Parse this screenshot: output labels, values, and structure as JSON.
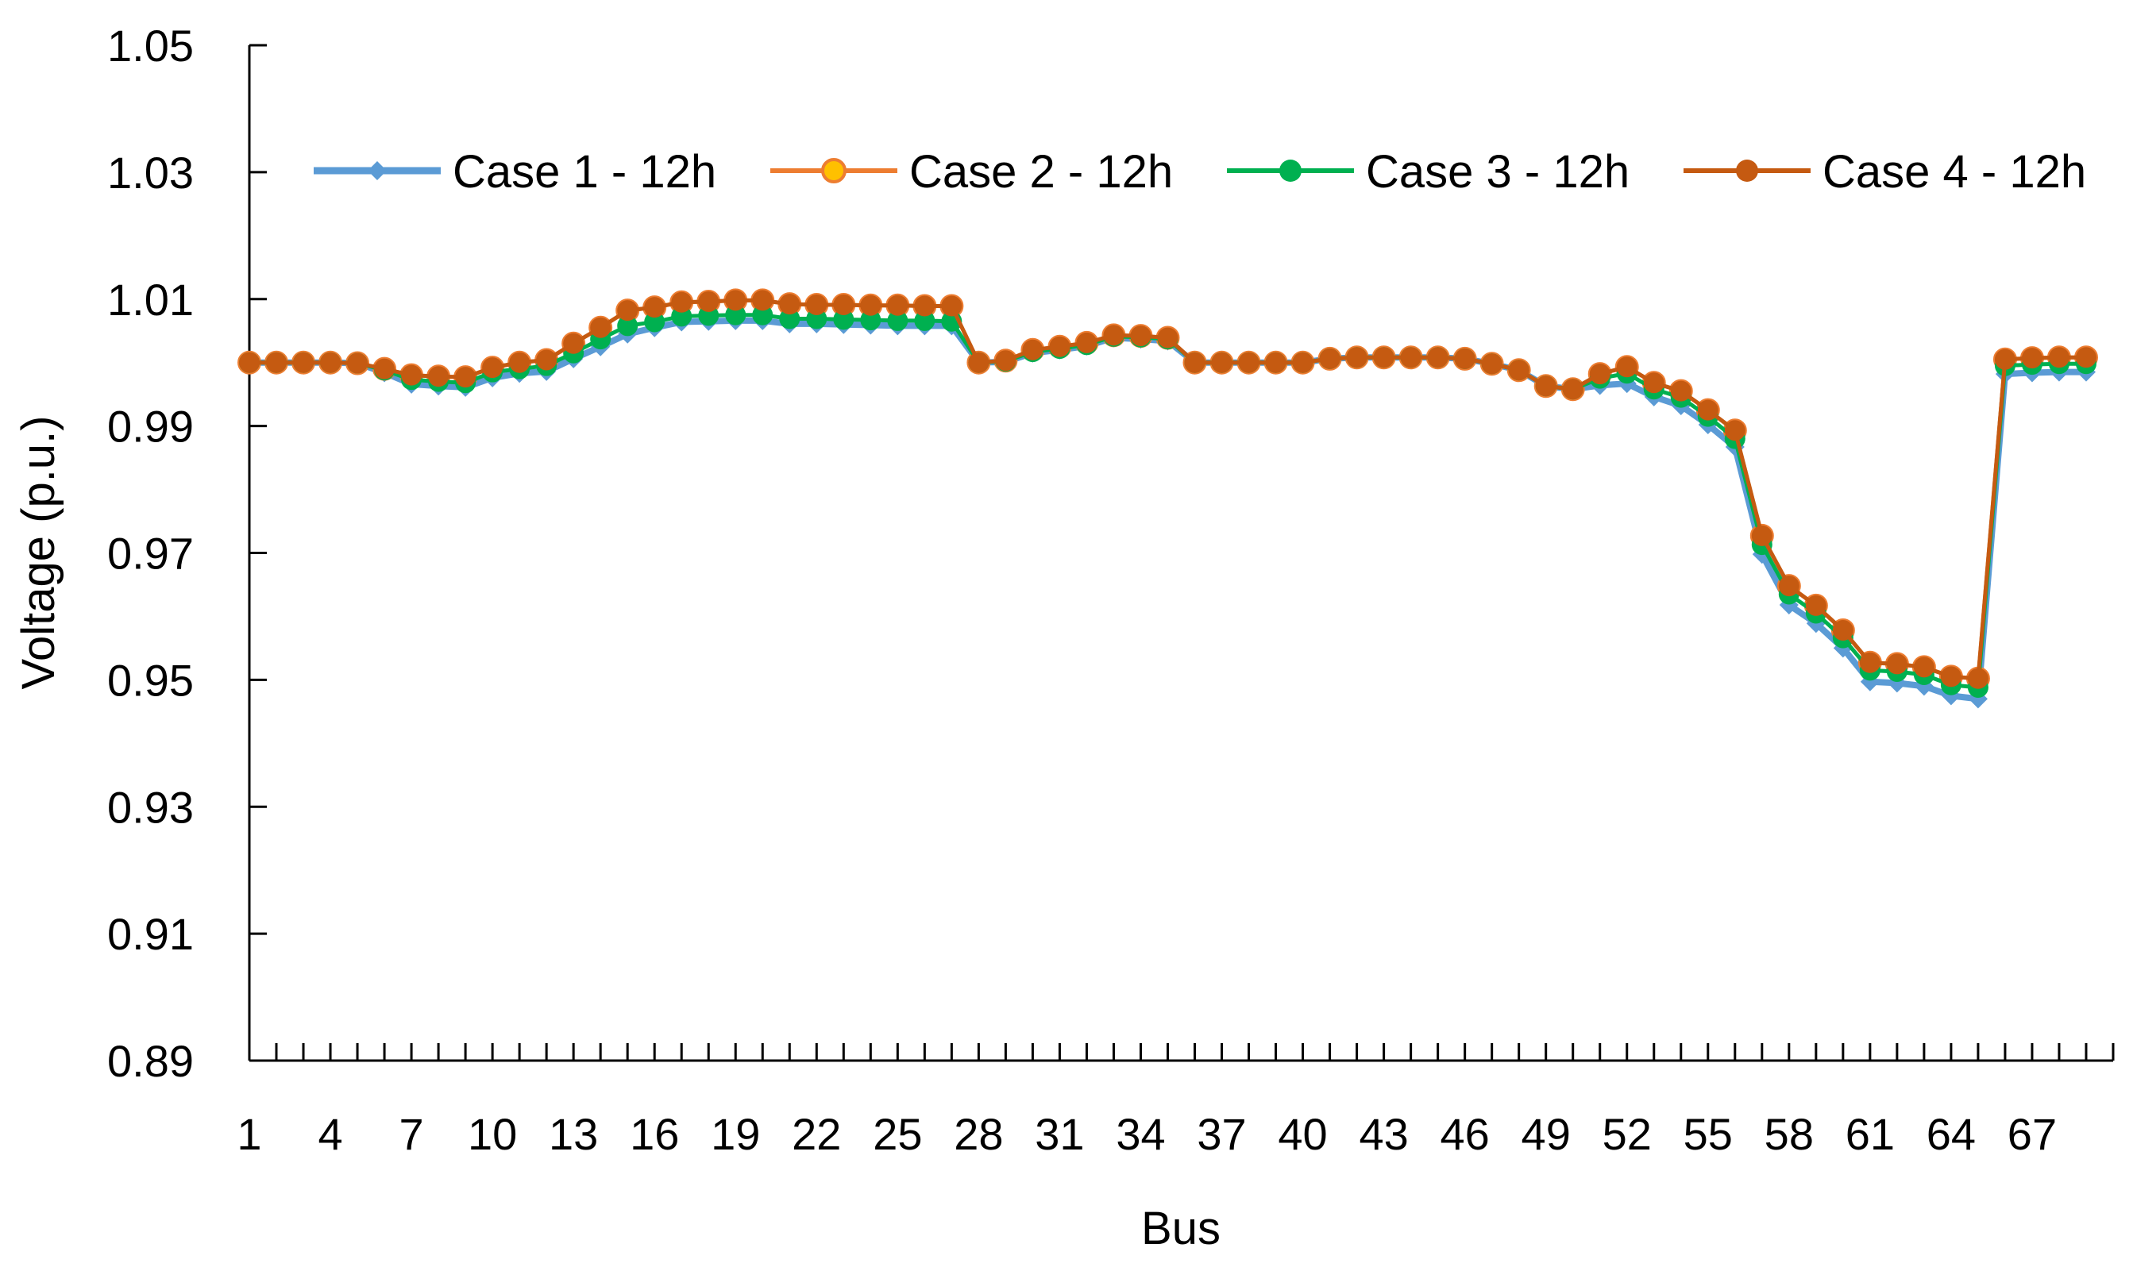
{
  "chart_data": {
    "type": "line",
    "title": "",
    "xlabel": "Bus",
    "ylabel": "Voltage (p.u.)",
    "ylim": [
      0.89,
      1.05
    ],
    "yticks": [
      "1.05",
      "1.03",
      "1.01",
      "0.99",
      "0.97",
      "0.95",
      "0.93",
      "0.91",
      "0.89"
    ],
    "x": [
      1,
      2,
      3,
      4,
      5,
      6,
      7,
      8,
      9,
      10,
      11,
      12,
      13,
      14,
      15,
      16,
      17,
      18,
      19,
      20,
      21,
      22,
      23,
      24,
      25,
      26,
      27,
      28,
      29,
      30,
      31,
      32,
      33,
      34,
      35,
      36,
      37,
      38,
      39,
      40,
      41,
      42,
      43,
      44,
      45,
      46,
      47,
      48,
      49,
      50,
      51,
      52,
      53,
      54,
      55,
      56,
      57,
      58,
      59,
      60,
      61,
      62,
      63,
      64,
      65,
      66,
      67,
      68,
      69
    ],
    "xtick_labels": [
      "1",
      "4",
      "7",
      "10",
      "13",
      "16",
      "19",
      "22",
      "25",
      "28",
      "31",
      "34",
      "37",
      "40",
      "43",
      "46",
      "49",
      "52",
      "55",
      "58",
      "61",
      "64",
      "67"
    ],
    "legend_position": "top",
    "grid": false,
    "series": [
      {
        "name": "Case 1 - 12h",
        "color": "#5B9BD5",
        "marker": "diamond",
        "values": [
          1.0,
          1.0,
          1.0,
          1.0,
          0.9999,
          0.9984,
          0.9966,
          0.9963,
          0.9961,
          0.9976,
          0.9983,
          0.9986,
          1.0006,
          1.0025,
          1.0045,
          1.0055,
          1.0064,
          1.0065,
          1.0066,
          1.0066,
          1.0061,
          1.0061,
          1.006,
          1.0059,
          1.0058,
          1.0058,
          1.0058,
          1.0,
          1.0001,
          1.0015,
          1.002,
          1.0026,
          1.0039,
          1.0037,
          1.0034,
          1.0,
          1.0,
          1.0,
          1.0,
          1.0,
          1.0006,
          1.0008,
          1.0008,
          1.0008,
          1.0008,
          1.0006,
          0.9998,
          0.9988,
          0.9963,
          0.9958,
          0.9964,
          0.9967,
          0.9946,
          0.9932,
          0.9902,
          0.9867,
          0.9698,
          0.9618,
          0.9589,
          0.955,
          0.9497,
          0.9495,
          0.949,
          0.9475,
          0.947,
          0.9982,
          0.9984,
          0.9985,
          0.9985
        ]
      },
      {
        "name": "Case 2 - 12h",
        "color": "#ED7D31",
        "marker": "circle",
        "values": [
          1.0,
          1.0,
          1.0,
          1.0,
          0.9999,
          0.999,
          0.998,
          0.9978,
          0.9977,
          0.9992,
          1.0,
          1.0004,
          1.003,
          1.0055,
          1.0082,
          1.0087,
          1.0095,
          1.0096,
          1.0098,
          1.0098,
          1.0092,
          1.0091,
          1.0091,
          1.009,
          1.009,
          1.0089,
          1.0089,
          1.0,
          1.0003,
          1.002,
          1.0025,
          1.0031,
          1.0043,
          1.0042,
          1.0039,
          1.0,
          1.0,
          1.0,
          1.0,
          1.0,
          1.0006,
          1.0008,
          1.0008,
          1.0008,
          1.0008,
          1.0006,
          0.9998,
          0.9988,
          0.9963,
          0.9958,
          0.9982,
          0.9993,
          0.9968,
          0.9955,
          0.9925,
          0.9893,
          0.9727,
          0.9648,
          0.9617,
          0.9578,
          0.9527,
          0.9525,
          0.952,
          0.9505,
          0.9502,
          1.0005,
          1.0007,
          1.0008,
          1.0008
        ]
      },
      {
        "name": "Case 3 - 12h",
        "color": "#00B050",
        "marker": "circle",
        "values": [
          1.0,
          1.0,
          1.0,
          1.0,
          0.9999,
          0.9988,
          0.9973,
          0.997,
          0.9968,
          0.9985,
          0.999,
          0.9995,
          1.0015,
          1.0037,
          1.0058,
          1.0064,
          1.0073,
          1.0074,
          1.0075,
          1.0075,
          1.0069,
          1.0069,
          1.0068,
          1.0067,
          1.0066,
          1.0066,
          1.0065,
          1.0,
          1.0002,
          1.0017,
          1.0022,
          1.0028,
          1.0041,
          1.004,
          1.0037,
          1.0,
          1.0,
          1.0,
          1.0,
          1.0,
          1.0006,
          1.0008,
          1.0008,
          1.0008,
          1.0008,
          1.0006,
          0.9998,
          0.9988,
          0.9963,
          0.9958,
          0.9975,
          0.9983,
          0.9958,
          0.9945,
          0.9915,
          0.988,
          0.9713,
          0.9635,
          0.9605,
          0.9566,
          0.9515,
          0.9513,
          0.9508,
          0.9492,
          0.9488,
          0.9995,
          0.9997,
          0.9998,
          0.9998
        ]
      },
      {
        "name": "Case 4 - 12h",
        "color": "#C55A11",
        "marker": "circle",
        "values": [
          1.0,
          1.0,
          1.0,
          1.0,
          0.9999,
          0.999,
          0.998,
          0.9978,
          0.9977,
          0.9992,
          1.0,
          1.0004,
          1.003,
          1.0055,
          1.0082,
          1.0087,
          1.0095,
          1.0096,
          1.0098,
          1.0098,
          1.0092,
          1.0091,
          1.0091,
          1.009,
          1.009,
          1.0089,
          1.0089,
          1.0,
          1.0003,
          1.002,
          1.0025,
          1.0031,
          1.0043,
          1.0042,
          1.0039,
          1.0,
          1.0,
          1.0,
          1.0,
          1.0,
          1.0006,
          1.0008,
          1.0008,
          1.0008,
          1.0008,
          1.0006,
          0.9998,
          0.9988,
          0.9963,
          0.9958,
          0.9982,
          0.9993,
          0.9968,
          0.9955,
          0.9925,
          0.9893,
          0.9727,
          0.9648,
          0.9617,
          0.9578,
          0.9527,
          0.9525,
          0.952,
          0.9505,
          0.9502,
          1.0005,
          1.0007,
          1.0008,
          1.0008
        ]
      }
    ]
  }
}
